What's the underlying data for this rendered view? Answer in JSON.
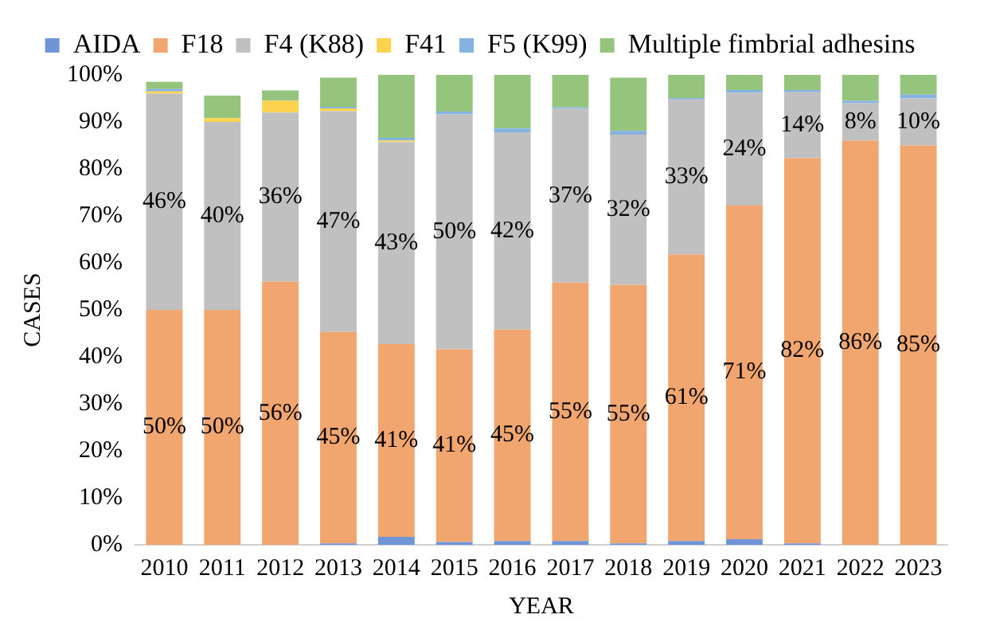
{
  "chart_data": {
    "type": "bar",
    "stacked": true,
    "xlabel": "YEAR",
    "ylabel": "CASES",
    "legend": "top",
    "grid": false,
    "categories": [
      "2010",
      "2011",
      "2012",
      "2013",
      "2014",
      "2015",
      "2016",
      "2017",
      "2018",
      "2019",
      "2020",
      "2021",
      "2022",
      "2023"
    ],
    "ylim": [
      0,
      100
    ],
    "yticks": [
      {
        "value": 0,
        "label": "0%"
      },
      {
        "value": 10,
        "label": "10%"
      },
      {
        "value": 20,
        "label": "20%"
      },
      {
        "value": 30,
        "label": "30%"
      },
      {
        "value": 40,
        "label": "40%"
      },
      {
        "value": 50,
        "label": "50%"
      },
      {
        "value": 60,
        "label": "60%"
      },
      {
        "value": 70,
        "label": "70%"
      },
      {
        "value": 80,
        "label": "80%"
      },
      {
        "value": 90,
        "label": "90%"
      },
      {
        "value": 100,
        "label": "100%"
      }
    ],
    "series": [
      {
        "name": "AIDA",
        "color": "#6f95d8",
        "values": [
          0,
          0,
          0,
          0.3,
          1.7,
          0.6,
          0.8,
          0.8,
          0.3,
          0.8,
          1.2,
          0.3,
          0,
          0
        ]
      },
      {
        "name": "F18",
        "color": "#f2a66f",
        "values": [
          50,
          50,
          56,
          45,
          41,
          41,
          45,
          55,
          55,
          61,
          71,
          82,
          86,
          85
        ],
        "value_labels": [
          "50%",
          "50%",
          "56%",
          "45%",
          "41%",
          "41%",
          "45%",
          "55%",
          "55%",
          "61%",
          "71%",
          "82%",
          "86%",
          "85%"
        ]
      },
      {
        "name": "F4 (K88)",
        "color": "#c0c0c0",
        "values": [
          46,
          40,
          36,
          47,
          43,
          50,
          42,
          37,
          32,
          33,
          24,
          14,
          8,
          10
        ],
        "value_labels": [
          "46%",
          "40%",
          "36%",
          "47%",
          "43%",
          "50%",
          "42%",
          "37%",
          "32%",
          "33%",
          "24%",
          "14%",
          "8%",
          "10%"
        ]
      },
      {
        "name": "F41",
        "color": "#fdd34e",
        "values": [
          0.5,
          0.8,
          2.5,
          0.6,
          0.3,
          0,
          0,
          0,
          0,
          0,
          0,
          0,
          0,
          0
        ]
      },
      {
        "name": "F5 (K99)",
        "color": "#84b3e2",
        "values": [
          0.5,
          0,
          0,
          0.3,
          0.6,
          0.6,
          0.8,
          0.3,
          0.8,
          0.3,
          0.6,
          0.5,
          0.5,
          0.8
        ]
      },
      {
        "name": "Multiple fimbrial adhesins",
        "color": "#95c47c",
        "values": [
          1.5,
          4.8,
          2.2,
          6.2,
          13.4,
          7.8,
          11.4,
          6.9,
          11.3,
          4.9,
          3.2,
          3.2,
          5.5,
          4.2
        ]
      }
    ]
  }
}
